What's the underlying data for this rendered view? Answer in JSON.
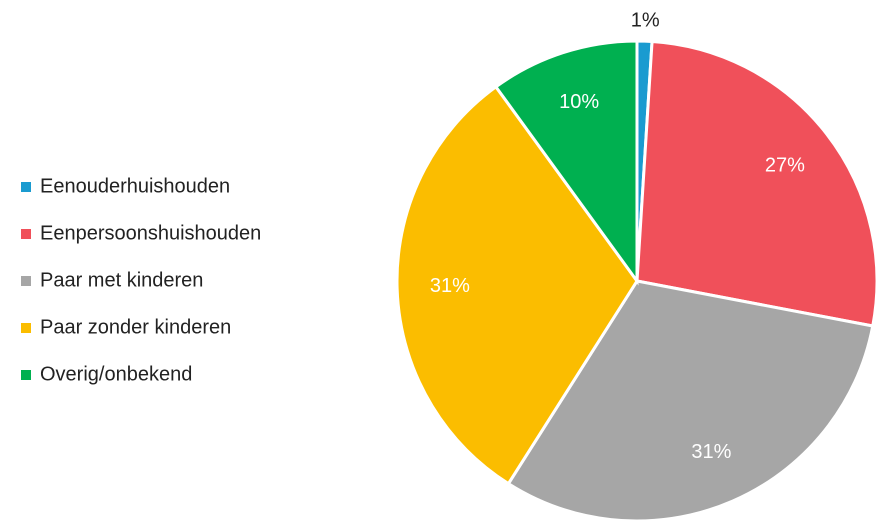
{
  "chart_data": {
    "type": "pie",
    "categories": [
      "Eenouderhuishouden",
      "Eenpersoonshuishouden",
      "Paar met kinderen",
      "Paar zonder kinderen",
      "Overig/onbekend"
    ],
    "values": [
      1,
      27,
      31,
      31,
      10
    ],
    "value_labels": [
      "1%",
      "27%",
      "31%",
      "31%",
      "10%"
    ],
    "colors": [
      "#1a9bd0",
      "#f0505a",
      "#a6a6a6",
      "#fbbd00",
      "#00b050"
    ],
    "legend": "left"
  }
}
